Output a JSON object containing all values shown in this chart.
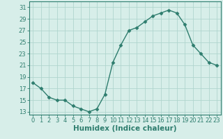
{
  "x": [
    0,
    1,
    2,
    3,
    4,
    5,
    6,
    7,
    8,
    9,
    10,
    11,
    12,
    13,
    14,
    15,
    16,
    17,
    18,
    19,
    20,
    21,
    22,
    23
  ],
  "y": [
    18,
    17,
    15.5,
    15,
    15,
    14,
    13.5,
    13,
    13.5,
    16,
    21.5,
    24.5,
    27,
    27.5,
    28.5,
    29.5,
    30,
    30.5,
    30,
    28,
    24.5,
    23,
    21.5,
    21
  ],
  "line_color": "#2e7d6e",
  "marker": "D",
  "marker_size": 2.5,
  "bg_color": "#d7eee9",
  "grid_color": "#b0d5ce",
  "xlabel": "Humidex (Indice chaleur)",
  "xlabel_fontsize": 7.5,
  "ylabel_ticks": [
    13,
    15,
    17,
    19,
    21,
    23,
    25,
    27,
    29,
    31
  ],
  "xlim": [
    -0.5,
    23.5
  ],
  "ylim": [
    12.5,
    32
  ],
  "tick_fontsize": 6,
  "axis_color": "#2e7d6e",
  "line_width": 1.0
}
